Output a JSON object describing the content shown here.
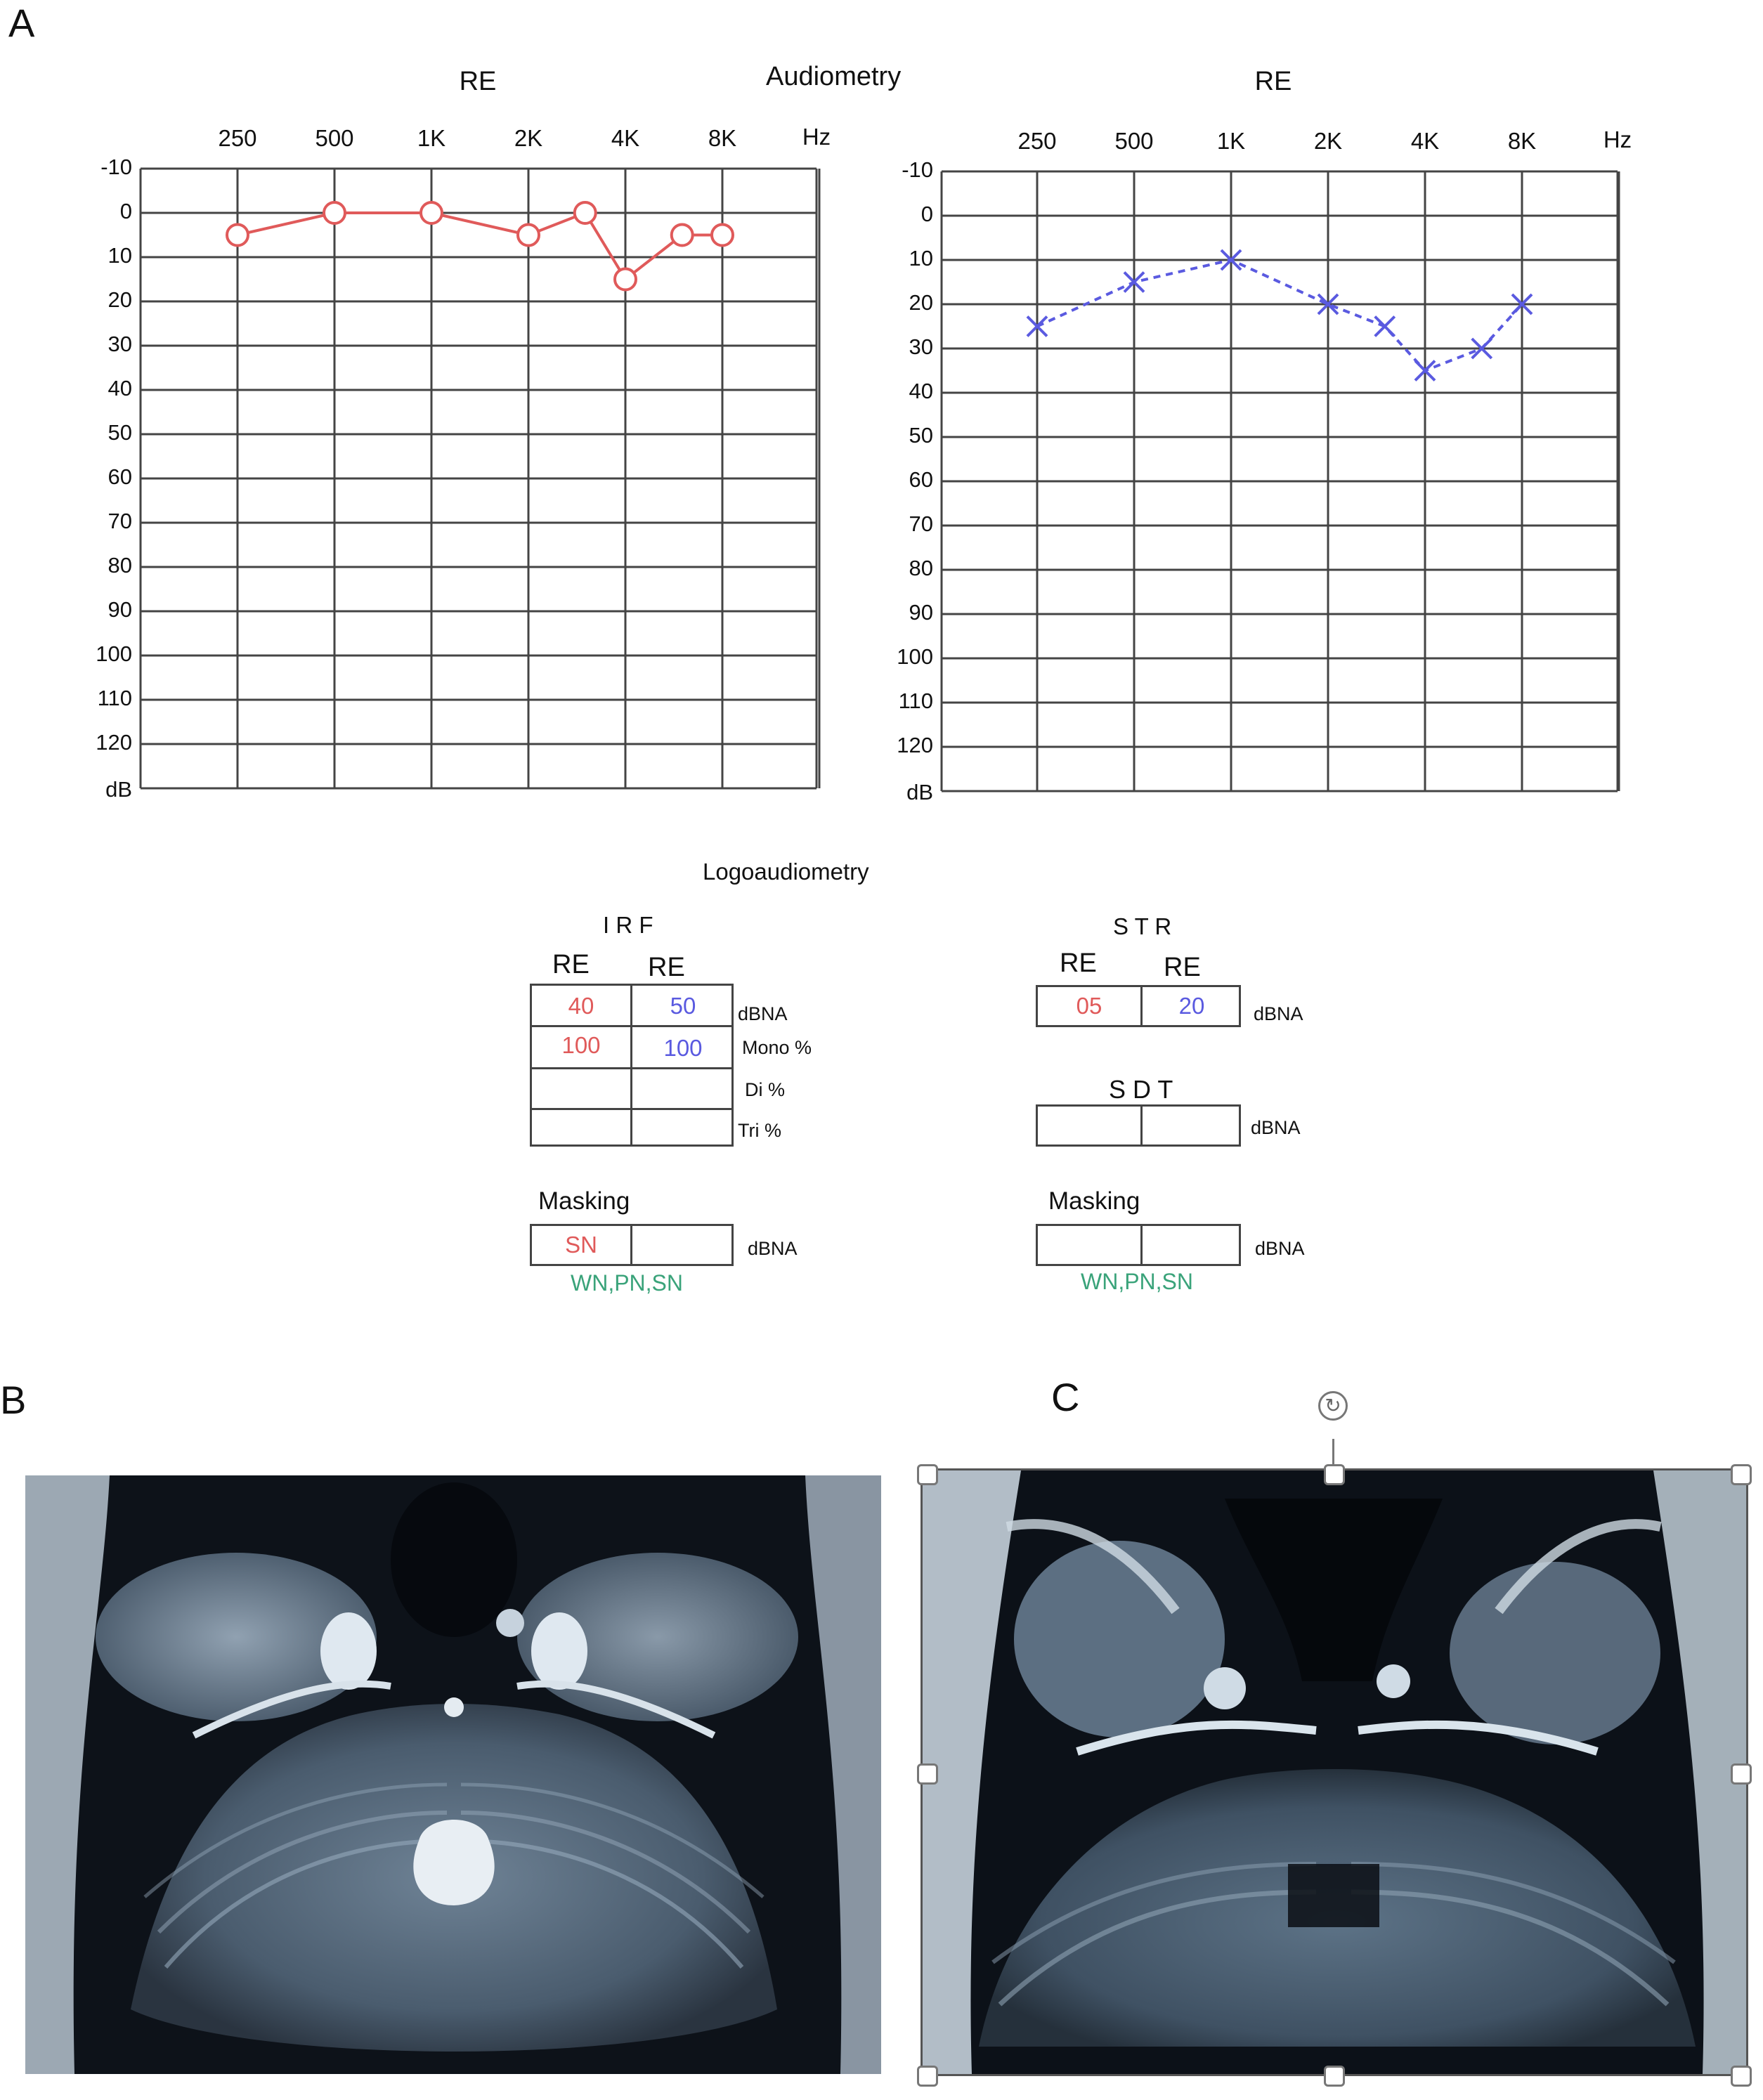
{
  "labels": {
    "panel_a": "A",
    "panel_b": "B",
    "panel_c": "C",
    "audiometry_title": "Audiometry",
    "logo_title": "Logoaudiometry"
  },
  "chart_data": [
    {
      "type": "line",
      "title": "RE",
      "x_tick_labels": [
        "250",
        "500",
        "1K",
        "2K",
        "4K",
        "8K"
      ],
      "x_unit": "Hz",
      "y_tick_labels": [
        "-10",
        "0",
        "10",
        "20",
        "30",
        "40",
        "50",
        "60",
        "70",
        "80",
        "90",
        "100",
        "110",
        "120"
      ],
      "y_unit": "dB",
      "ylim": [
        -10,
        130
      ],
      "y_inverted": true,
      "grid": true,
      "series": [
        {
          "marker": "circle",
          "color": "#e05a5a",
          "line": "solid",
          "x": [
            250,
            500,
            1000,
            2000,
            3000,
            4000,
            6000,
            8000
          ],
          "y": [
            5,
            0,
            0,
            5,
            0,
            15,
            5,
            5
          ]
        }
      ]
    },
    {
      "type": "line",
      "title": "RE",
      "x_tick_labels": [
        "250",
        "500",
        "1K",
        "2K",
        "4K",
        "8K"
      ],
      "x_unit": "Hz",
      "y_tick_labels": [
        "-10",
        "0",
        "10",
        "20",
        "30",
        "40",
        "50",
        "60",
        "70",
        "80",
        "90",
        "100",
        "110",
        "120"
      ],
      "y_unit": "dB",
      "ylim": [
        -10,
        130
      ],
      "y_inverted": true,
      "grid": true,
      "series": [
        {
          "marker": "cross",
          "color": "#5a5ae0",
          "line": "dashed",
          "x": [
            250,
            500,
            1000,
            2000,
            3000,
            4000,
            6000,
            8000
          ],
          "y": [
            25,
            15,
            10,
            20,
            25,
            35,
            30,
            20
          ]
        }
      ]
    }
  ],
  "irf": {
    "title": "I R F",
    "col_headers": [
      "RE",
      "RE"
    ],
    "rows": [
      {
        "values": [
          "40",
          "50"
        ],
        "unit": "dBNA"
      },
      {
        "values": [
          "100",
          "100"
        ],
        "unit": "Mono %"
      },
      {
        "values": [
          "",
          ""
        ],
        "unit": "Di %"
      },
      {
        "values": [
          "",
          ""
        ],
        "unit": "Tri %"
      }
    ],
    "masking_label": "Masking",
    "masking_values": [
      "SN",
      ""
    ],
    "masking_unit": "dBNA",
    "masking_note": "WN,PN,SN"
  },
  "str": {
    "title": "S T R",
    "col_headers": [
      "RE",
      "RE"
    ],
    "values": [
      "05",
      "20"
    ],
    "unit": "dBNA",
    "sdt_title": "S D T",
    "sdt_values": [
      "",
      ""
    ],
    "sdt_unit": "dBNA",
    "masking_label": "Masking",
    "masking_values": [
      "",
      ""
    ],
    "masking_unit": "dBNA",
    "masking_note": "WN,PN,SN"
  },
  "colors": {
    "red": "#e05a5a",
    "blue": "#5a5ae0",
    "green": "#3aa37a",
    "grid": "#444444"
  },
  "icons": [
    "rotate-icon"
  ]
}
